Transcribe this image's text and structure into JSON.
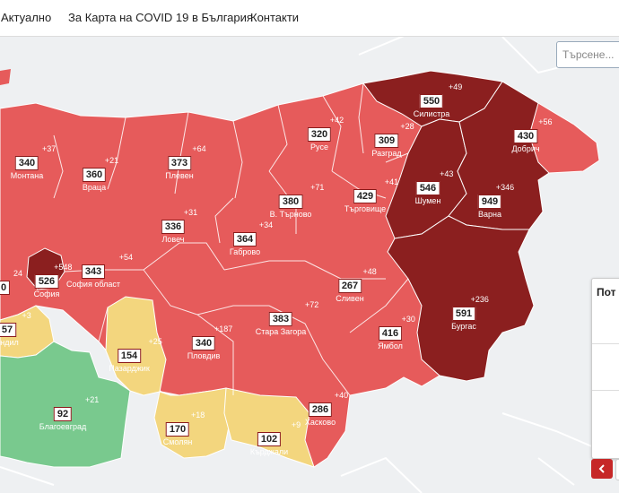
{
  "nav": {
    "items": [
      {
        "label": "Актуално"
      },
      {
        "label": "За Карта на COVID 19 в България"
      },
      {
        "label": "Контакти"
      }
    ]
  },
  "search": {
    "placeholder": "Търсене..."
  },
  "panel": {
    "title": "Пот"
  },
  "colors": {
    "dark": "#8b1f1f",
    "red": "#e65b5b",
    "yellow": "#f3d67e",
    "green": "#79c98e"
  },
  "regions": [
    {
      "id": "montana",
      "name": "Монтана",
      "value": "340",
      "delta": "+37"
    },
    {
      "id": "vratsa",
      "name": "Враца",
      "value": "360",
      "delta": "+21"
    },
    {
      "id": "pleven",
      "name": "Плевен",
      "value": "373",
      "delta": "+64"
    },
    {
      "id": "ruse",
      "name": "Русе",
      "value": "320",
      "delta": "+42"
    },
    {
      "id": "silistra",
      "name": "Силистра",
      "value": "550",
      "delta": "+49"
    },
    {
      "id": "razgrad",
      "name": "Разград",
      "value": "309",
      "delta": "+28"
    },
    {
      "id": "dobrich",
      "name": "Добрич",
      "value": "430",
      "delta": "+56"
    },
    {
      "id": "shumen",
      "name": "Шумен",
      "value": "546",
      "delta": "+43"
    },
    {
      "id": "varna",
      "name": "Варна",
      "value": "949",
      "delta": "+346"
    },
    {
      "id": "targovishte",
      "name": "Търговище",
      "value": "429",
      "delta": "+41"
    },
    {
      "id": "vtarnovo",
      "name": "В. Търново",
      "value": "380",
      "delta": "+71"
    },
    {
      "id": "lovech",
      "name": "Ловеч",
      "value": "336",
      "delta": "+31"
    },
    {
      "id": "gabrovo",
      "name": "Габрово",
      "value": "364",
      "delta": "+34"
    },
    {
      "id": "sofia",
      "name": "София",
      "value": "526",
      "delta": "+548"
    },
    {
      "id": "sofiaobl",
      "name": "София област",
      "value": "343",
      "delta": "+54"
    },
    {
      "id": "kyustendil",
      "name": "ендил",
      "value": "57",
      "delta": "+3"
    },
    {
      "id": "pernik",
      "name": "",
      "value": "0",
      "delta": "24"
    },
    {
      "id": "sliven",
      "name": "Сливен",
      "value": "267",
      "delta": "+48"
    },
    {
      "id": "burgas",
      "name": "Бургас",
      "value": "591",
      "delta": "+236"
    },
    {
      "id": "yambol",
      "name": "Ямбол",
      "value": "416",
      "delta": "+30"
    },
    {
      "id": "starazagora",
      "name": "Стара Загора",
      "value": "383",
      "delta": "+72"
    },
    {
      "id": "plovdiv",
      "name": "Пловдив",
      "value": "340",
      "delta": "+187"
    },
    {
      "id": "pazardzhik",
      "name": "Пазарджик",
      "value": "154",
      "delta": "+25"
    },
    {
      "id": "blagoevgrad",
      "name": "Благоевград",
      "value": "92",
      "delta": "+21"
    },
    {
      "id": "smolyan",
      "name": "Смолян",
      "value": "170",
      "delta": "+18"
    },
    {
      "id": "kardzhali",
      "name": "Кърджали",
      "value": "102",
      "delta": "+9"
    },
    {
      "id": "haskovo",
      "name": "Хасково",
      "value": "286",
      "delta": "+40"
    }
  ]
}
